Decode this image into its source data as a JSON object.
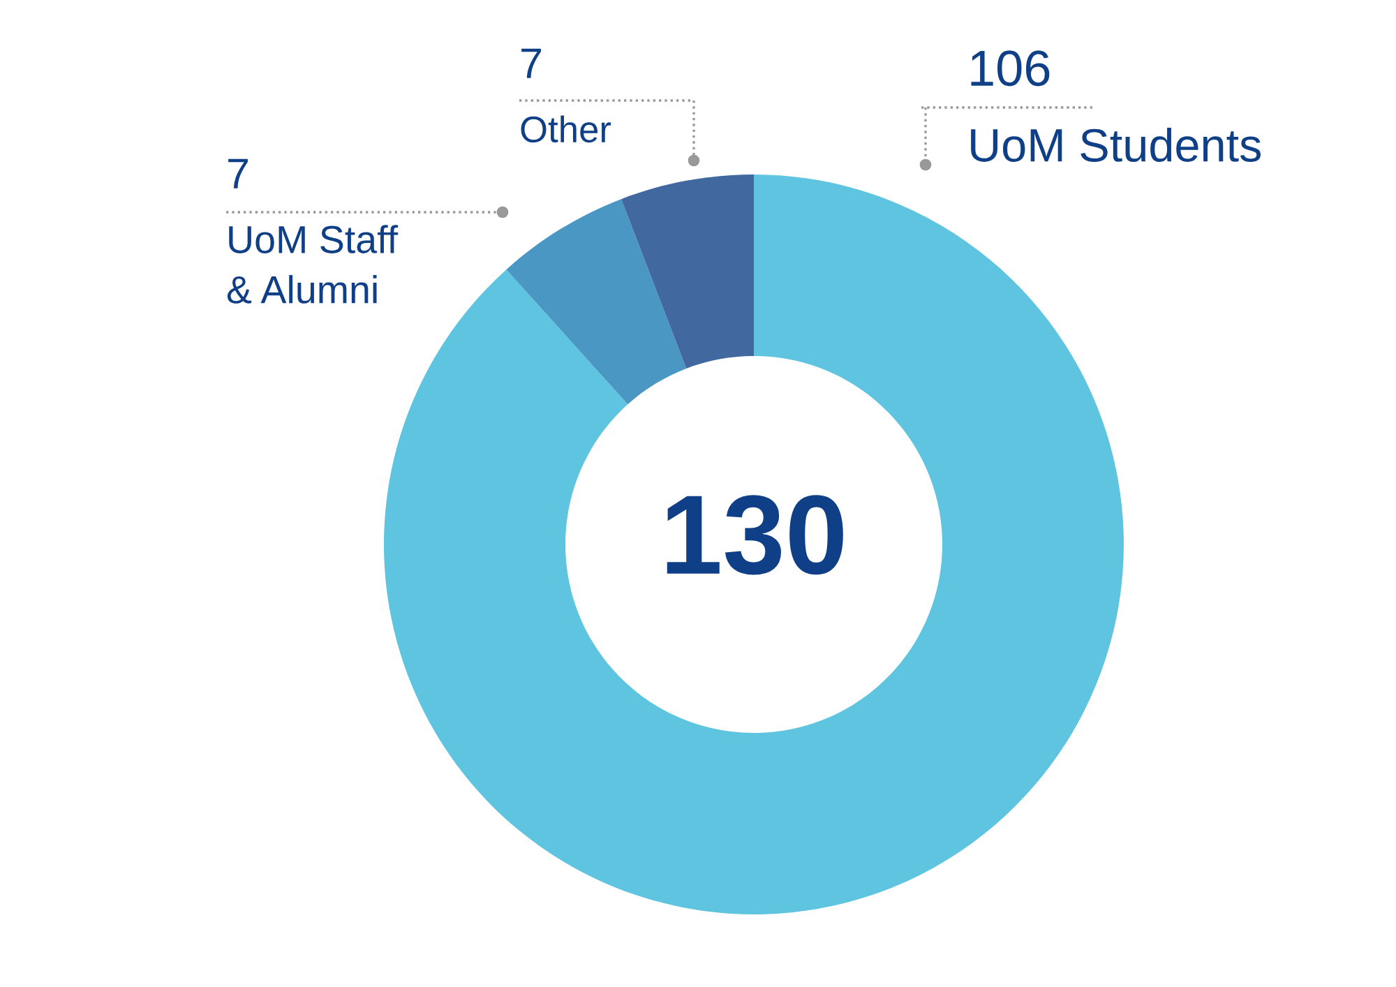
{
  "chart_data": {
    "type": "donut",
    "categories": [
      "UoM Students",
      "UoM Staff\n& Alumni",
      "Other"
    ],
    "values": [
      106,
      7,
      7
    ],
    "colors": [
      "#5fc4e0",
      "#4a97c4",
      "#41689f"
    ],
    "data_labels": true,
    "annotations": [
      "130"
    ]
  }
}
